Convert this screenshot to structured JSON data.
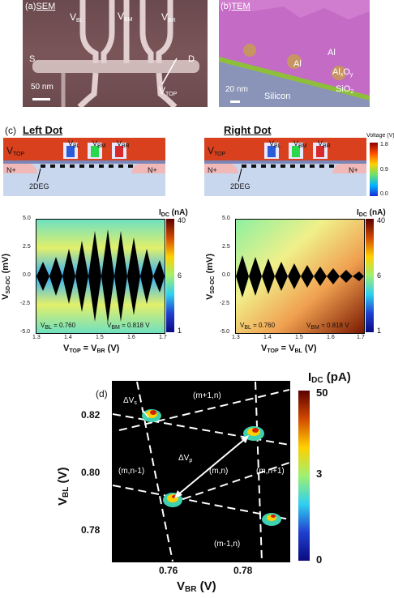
{
  "panel_a": {
    "tag": "(a)",
    "method": "SEM",
    "vbl": "V",
    "vbl_sub": "BL",
    "vbm": "V",
    "vbm_sub": "BM",
    "vbr": "V",
    "vbr_sub": "BR",
    "s": "S",
    "d": "D",
    "vtop": "V",
    "vtop_sub": "TOP",
    "scale": "50 nm"
  },
  "panel_b": {
    "tag": "(b)",
    "method": "TEM",
    "al1": "Al",
    "al2": "Al",
    "alox": "Al",
    "alox_sub1": "x",
    "alox_mid": "O",
    "alox_sub2": "y",
    "sio": "SiO",
    "sio_sub": "2",
    "silicon": "Silicon",
    "scale": "20 nm"
  },
  "panel_c": {
    "tag": "(c)",
    "left_title": "Left Dot",
    "right_title": "Right Dot",
    "colorbar_top_title": "Voltage (V)",
    "colorbar_top_ticks": [
      "1.8",
      "0.9",
      "0.0"
    ],
    "left": {
      "vtop": "V",
      "vtop_sub": "TOP",
      "gates": [
        {
          "v": "V",
          "s": "BL"
        },
        {
          "v": "V",
          "s": "BM"
        },
        {
          "v": "V",
          "s": "BR"
        }
      ],
      "nplus": "N+",
      "twodeg": "2DEG",
      "ylabel": "V",
      "ylabel_sub": "SD-DC",
      "ylabel_unit": " (mV)",
      "yticks": [
        "5.0",
        "2.5",
        "0.0",
        "-2.5",
        "-5.0"
      ],
      "xlabel_a": "V",
      "xlabel_a_sub": "TOP",
      "xlabel_mid": " = V",
      "xlabel_b_sub": "BR",
      "xlabel_unit": " (V)",
      "xticks": [
        "1.3",
        "1.4",
        "1.5",
        "1.6",
        "1.7"
      ],
      "ann1": "V",
      "ann1_sub": "BL",
      "ann1_val": " = 0.760",
      "ann2": "V",
      "ann2_sub": "BM",
      "ann2_val": " = 0.818 V",
      "cbar_title": "I",
      "cbar_sub": "DC",
      "cbar_unit": " (nA)",
      "cbar_ticks": [
        "40",
        "6",
        "1"
      ]
    },
    "right": {
      "vtop": "V",
      "vtop_sub": "TOP",
      "gates": [
        {
          "v": "V",
          "s": "BL"
        },
        {
          "v": "V",
          "s": "BM"
        },
        {
          "v": "V",
          "s": "BR"
        }
      ],
      "nplus": "N+",
      "twodeg": "2DEG",
      "ylabel": "V",
      "ylabel_sub": "SD-DC",
      "ylabel_unit": " (mV)",
      "yticks": [
        "5.0",
        "2.5",
        "0.0",
        "-2.5",
        "-5.0"
      ],
      "xlabel_a": "V",
      "xlabel_a_sub": "TOP",
      "xlabel_mid": " = V",
      "xlabel_b_sub": "BL",
      "xlabel_unit": " (V)",
      "xticks": [
        "1.3",
        "1.4",
        "1.5",
        "1.6",
        "1.7"
      ],
      "ann1": "V",
      "ann1_sub": "BL",
      "ann1_val": " = 0.760",
      "ann2": "V",
      "ann2_sub": "BM",
      "ann2_val": " = 0.818 V",
      "cbar_title": "I",
      "cbar_sub": "DC",
      "cbar_unit": " (nA)",
      "cbar_ticks": [
        "40",
        "6",
        "1"
      ]
    }
  },
  "panel_d": {
    "tag": "(d)",
    "ylabel": "V",
    "ylabel_sub": "BL",
    "ylabel_unit": " (V)",
    "xlabel": "V",
    "xlabel_sub": "BR",
    "xlabel_unit": " (V)",
    "yticks": [
      "0.82",
      "0.80",
      "0.78"
    ],
    "xticks": [
      "0.76",
      "0.78"
    ],
    "regions": [
      "(m+1,n)",
      "(m,n-1)",
      "(m,n)",
      "(m,n+1)",
      "(m-1,n)"
    ],
    "dvs": "ΔV",
    "dvs_sub": "s",
    "dvp": "ΔV",
    "dvp_sub": "p",
    "cbar_title": "I",
    "cbar_sub": "DC",
    "cbar_unit": " (pA)",
    "cbar_ticks": [
      "50",
      "3",
      "0"
    ]
  }
}
